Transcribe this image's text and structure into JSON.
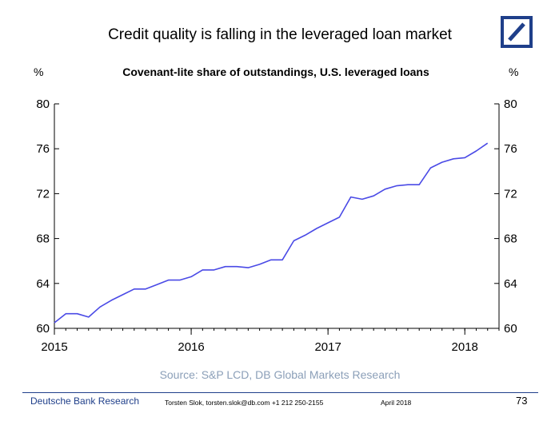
{
  "slide": {
    "headline": "Credit quality is falling in the leveraged loan market",
    "source": "Source: S&P LCD, DB Global Markets Research"
  },
  "footer": {
    "brand": "Deutsche Bank Research",
    "author": "Torsten Slok, torsten.slok@db.com +1 212 250-2155",
    "date": "April 2018",
    "page": "73"
  },
  "colors": {
    "series": "#4a4ae6",
    "logo": "#1f3f8a",
    "source_text": "#8b9fb8"
  },
  "chart_data": {
    "type": "line",
    "title": "Covenant-lite share of outstandings, U.S. leveraged loans",
    "ylabel_left": "%",
    "ylabel_right": "%",
    "xlim": [
      2015.0,
      2018.25
    ],
    "ylim": [
      60,
      80
    ],
    "x_ticks": [
      2015,
      2016,
      2017,
      2018
    ],
    "y_ticks": [
      60,
      64,
      68,
      72,
      76,
      80
    ],
    "grid": false,
    "series": [
      {
        "x": [
          2015.0,
          2015.0833,
          2015.1667,
          2015.25,
          2015.3333,
          2015.4167,
          2015.5,
          2015.5833,
          2015.6667,
          2015.75,
          2015.8333,
          2015.9167,
          2016.0,
          2016.0833,
          2016.1667,
          2016.25,
          2016.3333,
          2016.4167,
          2016.5,
          2016.5833,
          2016.6667,
          2016.75,
          2016.8333,
          2016.9167,
          2017.0,
          2017.0833,
          2017.1667,
          2017.25,
          2017.3333,
          2017.4167,
          2017.5,
          2017.5833,
          2017.6667,
          2017.75,
          2017.8333,
          2017.9167,
          2018.0,
          2018.0833,
          2018.1667
        ],
        "y": [
          60.5,
          61.3,
          61.3,
          61.0,
          61.9,
          62.5,
          63.0,
          63.5,
          63.5,
          63.9,
          64.3,
          64.3,
          64.6,
          65.2,
          65.2,
          65.5,
          65.5,
          65.4,
          65.7,
          66.1,
          66.1,
          67.8,
          68.3,
          68.9,
          69.4,
          69.9,
          71.7,
          71.5,
          71.8,
          72.4,
          72.7,
          72.8,
          72.8,
          74.3,
          74.8,
          75.1,
          75.2,
          75.8,
          76.5
        ]
      }
    ]
  }
}
